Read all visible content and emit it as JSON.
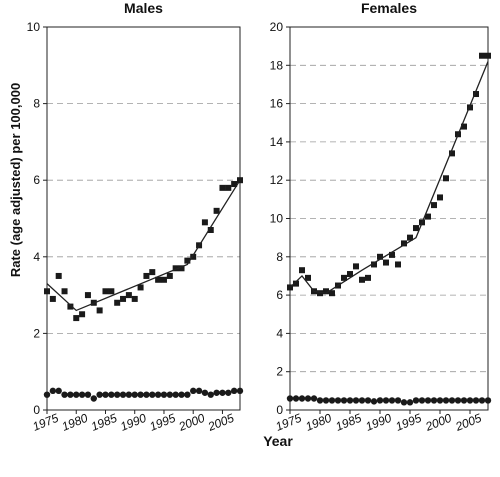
{
  "figure": {
    "ylabel": "Rate (age adjusted) per 100,000",
    "xlabel": "Year"
  },
  "chart_data": [
    {
      "type": "scatter",
      "title": "Males",
      "xlim": [
        1975,
        2008
      ],
      "ylim": [
        0,
        10
      ],
      "xticks": [
        1975,
        1980,
        1985,
        1990,
        1995,
        2000,
        2005
      ],
      "yticks": [
        0,
        2,
        4,
        6,
        8,
        10
      ],
      "grid": "horizontal dashed",
      "series": [
        {
          "marker": "square",
          "x": [
            1975,
            1976,
            1977,
            1978,
            1979,
            1980,
            1981,
            1982,
            1983,
            1984,
            1985,
            1986,
            1987,
            1988,
            1989,
            1990,
            1991,
            1992,
            1993,
            1994,
            1995,
            1996,
            1997,
            1998,
            1999,
            2000,
            2001,
            2002,
            2003,
            2004,
            2005,
            2006,
            2007,
            2008
          ],
          "values": [
            3.1,
            2.9,
            3.5,
            3.1,
            2.7,
            2.4,
            2.5,
            3.0,
            2.8,
            2.6,
            3.1,
            3.1,
            2.8,
            2.9,
            3.0,
            2.9,
            3.2,
            3.5,
            3.6,
            3.4,
            3.4,
            3.5,
            3.7,
            3.7,
            3.9,
            4.0,
            4.3,
            4.9,
            4.7,
            5.2,
            5.8,
            5.8,
            5.9,
            6.0
          ]
        },
        {
          "marker": "circle",
          "x": [
            1975,
            1976,
            1977,
            1978,
            1979,
            1980,
            1981,
            1982,
            1983,
            1984,
            1985,
            1986,
            1987,
            1988,
            1989,
            1990,
            1991,
            1992,
            1993,
            1994,
            1995,
            1996,
            1997,
            1998,
            1999,
            2000,
            2001,
            2002,
            2003,
            2004,
            2005,
            2006,
            2007,
            2008
          ],
          "values": [
            0.4,
            0.5,
            0.5,
            0.4,
            0.4,
            0.4,
            0.4,
            0.4,
            0.3,
            0.4,
            0.4,
            0.4,
            0.4,
            0.4,
            0.4,
            0.4,
            0.4,
            0.4,
            0.4,
            0.4,
            0.4,
            0.4,
            0.4,
            0.4,
            0.4,
            0.5,
            0.5,
            0.45,
            0.4,
            0.45,
            0.45,
            0.45,
            0.5,
            0.5
          ]
        },
        {
          "type": "line",
          "x": [
            1975,
            1980,
            1999,
            2008
          ],
          "values": [
            3.3,
            2.6,
            3.8,
            6.0
          ]
        }
      ]
    },
    {
      "type": "scatter",
      "title": "Females",
      "xlim": [
        1975,
        2008
      ],
      "ylim": [
        0,
        20
      ],
      "xticks": [
        1975,
        1980,
        1985,
        1990,
        1995,
        2000,
        2005
      ],
      "yticks": [
        0,
        2,
        4,
        6,
        8,
        10,
        12,
        14,
        16,
        18,
        20
      ],
      "grid": "horizontal dashed",
      "series": [
        {
          "marker": "square",
          "x": [
            1975,
            1976,
            1977,
            1978,
            1979,
            1980,
            1981,
            1982,
            1983,
            1984,
            1985,
            1986,
            1987,
            1988,
            1989,
            1990,
            1991,
            1992,
            1993,
            1994,
            1995,
            1996,
            1997,
            1998,
            1999,
            2000,
            2001,
            2002,
            2003,
            2004,
            2005,
            2006,
            2007,
            2008
          ],
          "values": [
            6.4,
            6.6,
            7.3,
            6.9,
            6.2,
            6.1,
            6.2,
            6.1,
            6.5,
            6.9,
            7.1,
            7.5,
            6.8,
            6.9,
            7.6,
            8.0,
            7.7,
            8.1,
            7.6,
            8.7,
            9.0,
            9.5,
            9.8,
            10.1,
            10.7,
            11.1,
            12.1,
            13.4,
            14.4,
            14.8,
            15.8,
            16.5,
            18.5,
            18.5
          ]
        },
        {
          "marker": "circle",
          "x": [
            1975,
            1976,
            1977,
            1978,
            1979,
            1980,
            1981,
            1982,
            1983,
            1984,
            1985,
            1986,
            1987,
            1988,
            1989,
            1990,
            1991,
            1992,
            1993,
            1994,
            1995,
            1996,
            1997,
            1998,
            1999,
            2000,
            2001,
            2002,
            2003,
            2004,
            2005,
            2006,
            2007,
            2008
          ],
          "values": [
            0.6,
            0.6,
            0.6,
            0.6,
            0.6,
            0.5,
            0.5,
            0.5,
            0.5,
            0.5,
            0.5,
            0.5,
            0.5,
            0.5,
            0.45,
            0.5,
            0.5,
            0.5,
            0.5,
            0.4,
            0.4,
            0.5,
            0.5,
            0.5,
            0.5,
            0.5,
            0.5,
            0.5,
            0.5,
            0.5,
            0.5,
            0.5,
            0.5,
            0.5
          ]
        },
        {
          "type": "line",
          "x": [
            1975,
            1977,
            1979,
            1981,
            1987,
            1996,
            2008
          ],
          "values": [
            6.4,
            7.0,
            6.2,
            6.1,
            7.3,
            9.0,
            18.2
          ]
        }
      ]
    }
  ]
}
